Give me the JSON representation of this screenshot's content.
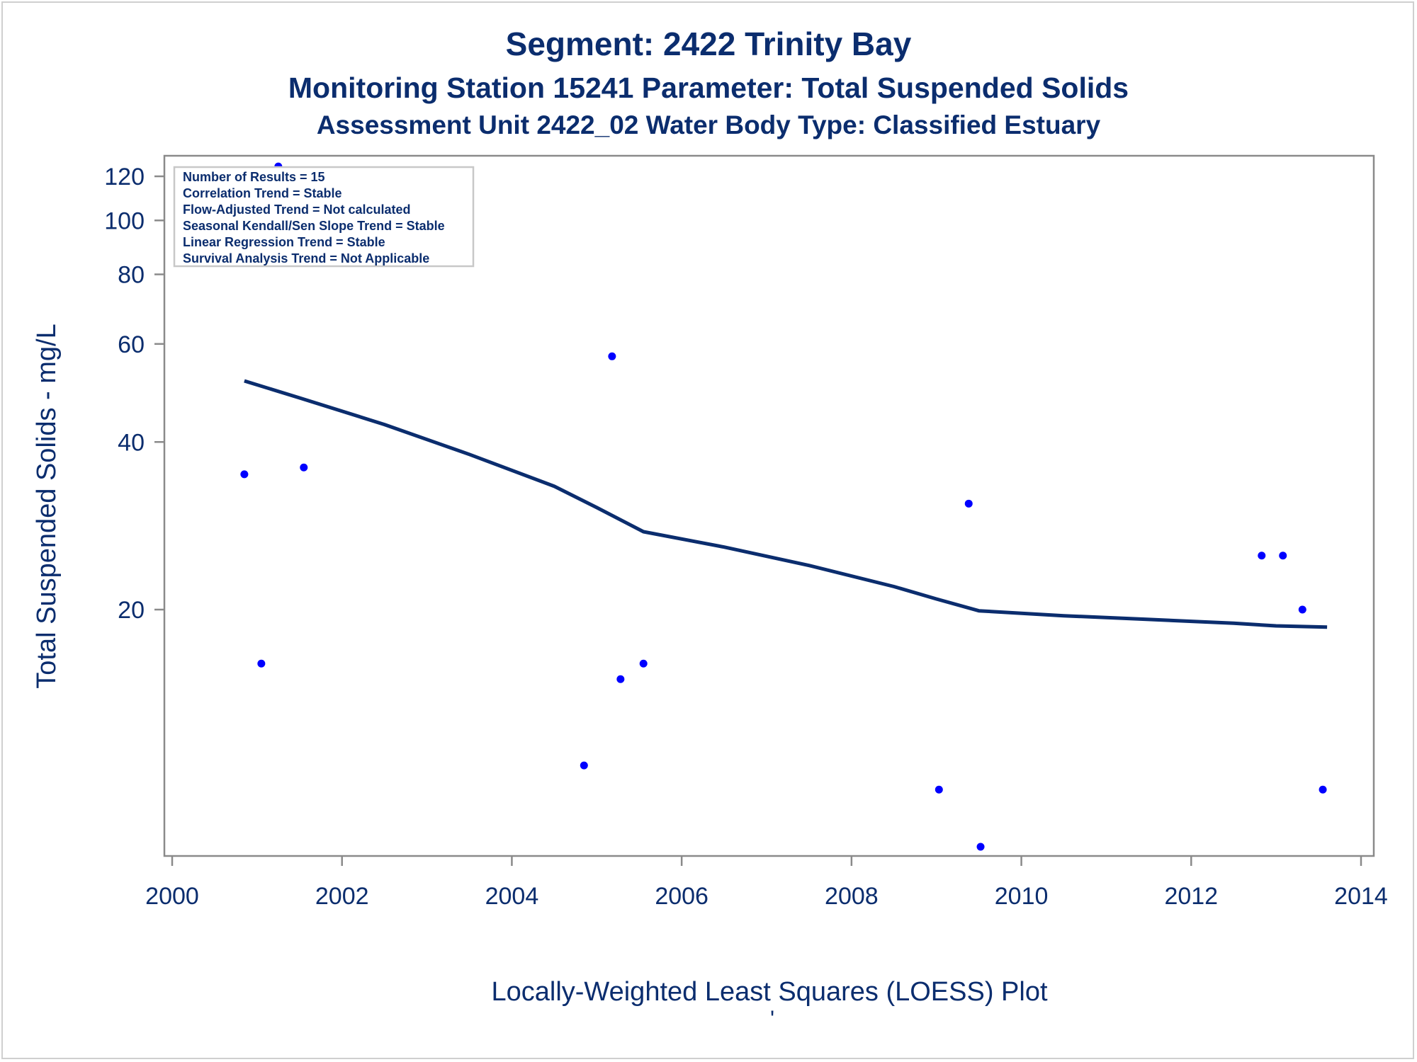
{
  "chart_data": {
    "type": "scatter",
    "title": "Segment: 2422  Trinity Bay",
    "subtitle": "Monitoring Station 15241 Parameter: Total Suspended Solids",
    "subtitle2": "Assessment Unit 2422_02   Water Body Type: Classified Estuary",
    "xlabel": "Locally-Weighted Least Squares (LOESS) Plot",
    "ylabel": "Total Suspended Solids - mg/L",
    "footnote_mark": "'",
    "y_scale": "log",
    "xlim": [
      2000,
      2014
    ],
    "ylim": [
      7.5,
      128
    ],
    "x_ticks": [
      2000,
      2002,
      2004,
      2006,
      2008,
      2010,
      2012,
      2014
    ],
    "y_ticks": [
      20,
      40,
      60,
      80,
      100,
      120
    ],
    "grid": false,
    "stats_box": {
      "placement": "top-left",
      "lines": [
        "Number of Results = 15",
        "Correlation Trend = Stable",
        "Flow-Adjusted Trend = Not calculated",
        "Seasonal Kendall/Sen Slope Trend = Stable",
        "Linear Regression Trend = Stable",
        "Survival Analysis Trend = Not Applicable"
      ]
    },
    "series": [
      {
        "kind": "points",
        "color": "#0000ff",
        "x": [
          2000.85,
          2001.05,
          2001.25,
          2001.55,
          2004.85,
          2005.18,
          2005.28,
          2005.55,
          2009.03,
          2009.38,
          2009.52,
          2012.83,
          2013.08,
          2013.31,
          2013.55
        ],
        "y": [
          35,
          16,
          125,
          36,
          10.5,
          57,
          15,
          16,
          9.5,
          31,
          7.5,
          25,
          25,
          20,
          9.5
        ]
      },
      {
        "kind": "loess-line",
        "color": "#0b2d6e",
        "x": [
          2000.85,
          2001.5,
          2002.5,
          2003.5,
          2004.5,
          2005.0,
          2005.55,
          2006.5,
          2007.5,
          2008.5,
          2009.0,
          2009.5,
          2010.5,
          2011.5,
          2012.5,
          2013.0,
          2013.6
        ],
        "y": [
          51.5,
          48,
          43,
          38,
          33.3,
          30.5,
          27.6,
          25.9,
          24.0,
          22.0,
          20.9,
          19.9,
          19.5,
          19.2,
          18.9,
          18.7,
          18.6
        ]
      }
    ]
  }
}
